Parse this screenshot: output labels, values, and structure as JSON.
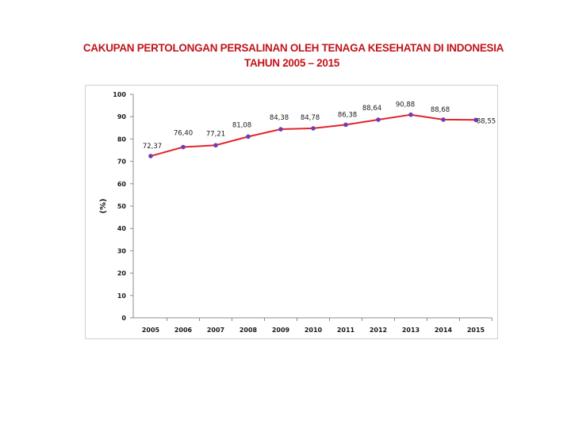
{
  "page": {
    "title_line1": "CAKUPAN PERTOLONGAN PERSALINAN OLEH TENAGA KESEHATAN DI INDONESIA",
    "title_line2": "TAHUN 2005 – 2015"
  },
  "chart_data": {
    "type": "line",
    "title": "CAKUPAN PERTOLONGAN PERSALINAN OLEH TENAGA KESEHATAN DI INDONESIA TAHUN 2005 – 2015",
    "xlabel": "",
    "ylabel": "(%)",
    "ylim": [
      0,
      100
    ],
    "yticks": [
      0,
      10,
      20,
      30,
      40,
      50,
      60,
      70,
      80,
      90,
      100
    ],
    "categories": [
      "2005",
      "2006",
      "2007",
      "2008",
      "2009",
      "2010",
      "2011",
      "2012",
      "2013",
      "2014",
      "2015"
    ],
    "values": [
      72.37,
      76.4,
      77.21,
      81.08,
      84.38,
      84.78,
      86.38,
      88.64,
      90.88,
      88.68,
      88.55
    ],
    "value_labels": [
      "72,37",
      "76,40",
      "77,21",
      "81,08",
      "84,38",
      "84,78",
      "86,38",
      "88,64",
      "90,88",
      "88,68",
      "88,55"
    ],
    "grid": false,
    "legend": "none",
    "colors": {
      "line": "#e3242b",
      "marker": "#6a3fb5",
      "title": "#c0141b"
    }
  }
}
